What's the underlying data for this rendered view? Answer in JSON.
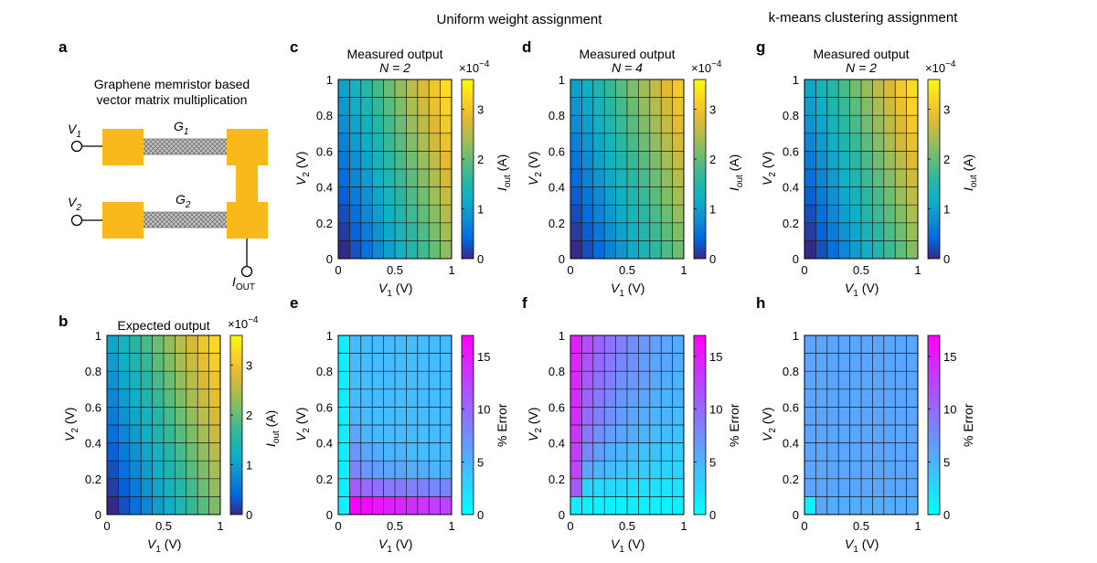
{
  "headers": {
    "uniform": "Uniform weight assignment",
    "kmeans": "k-means clustering assignment"
  },
  "panel_a": {
    "label": "a",
    "title_line1": "Graphene memristor based",
    "title_line2": "vector matrix multiplication",
    "v1": "V",
    "v1_sub": "1",
    "v2": "V",
    "v2_sub": "2",
    "g1": "G",
    "g1_sub": "1",
    "g2": "G",
    "g2_sub": "2",
    "iout": "I",
    "iout_sub": "OUT",
    "pad_color": "#F9B81B",
    "channel_color": "#bfbfbf"
  },
  "colormaps": {
    "parula": [
      "#352a87",
      "#0268e1",
      "#108ed2",
      "#0fb0c6",
      "#2ab7a1",
      "#63bd76",
      "#a6bd53",
      "#e0b934",
      "#fbd326",
      "#f9fb0e"
    ],
    "cool": [
      "#00ffff",
      "#ff00ff"
    ]
  },
  "chart_data": [
    {
      "id": "b",
      "label": "b",
      "type": "heatmap",
      "colormap": "parula",
      "title": "Expected output",
      "title_italic": "",
      "xlabel": "V",
      "xlabel_sub": "1",
      "xlabel_unit": " (V)",
      "ylabel": "V",
      "ylabel_sub": "2",
      "ylabel_unit": " (V)",
      "x": [
        0,
        0.1,
        0.2,
        0.3,
        0.4,
        0.5,
        0.6,
        0.7,
        0.8,
        0.9,
        1
      ],
      "y": [
        0,
        0.1,
        0.2,
        0.3,
        0.4,
        0.5,
        0.6,
        0.7,
        0.8,
        0.9,
        1
      ],
      "xlim": [
        0,
        1
      ],
      "ylim": [
        0,
        1
      ],
      "xticks": [
        "0",
        "0.5",
        "1"
      ],
      "yticks": [
        "0",
        "0.2",
        "0.4",
        "0.6",
        "0.8",
        "1"
      ],
      "grid": true,
      "model": {
        "a": 2.4,
        "b": 1.2,
        "scale": 0.0001
      },
      "colorbar": {
        "range": [
          0,
          3.6
        ],
        "ticks": [
          "0",
          "1",
          "2",
          "3"
        ],
        "exponent": "×10",
        "exponent_power": "−4",
        "label": "I",
        "label_sub": "out",
        "label_unit": " (A)"
      }
    },
    {
      "id": "c",
      "label": "c",
      "type": "heatmap",
      "colormap": "parula",
      "title": "Measured output",
      "title_italic": "N = 2",
      "xlabel": "V",
      "xlabel_sub": "1",
      "xlabel_unit": " (V)",
      "ylabel": "V",
      "ylabel_sub": "2",
      "ylabel_unit": " (V)",
      "x": [
        0,
        0.1,
        0.2,
        0.3,
        0.4,
        0.5,
        0.6,
        0.7,
        0.8,
        0.9,
        1
      ],
      "y": [
        0,
        0.1,
        0.2,
        0.3,
        0.4,
        0.5,
        0.6,
        0.7,
        0.8,
        0.9,
        1
      ],
      "xlim": [
        0,
        1
      ],
      "ylim": [
        0,
        1
      ],
      "xticks": [
        "0",
        "0.5",
        "1"
      ],
      "yticks": [
        "0",
        "0.2",
        "0.4",
        "0.6",
        "0.8",
        "1"
      ],
      "grid": true,
      "model": {
        "a": 2.5,
        "b": 1.15,
        "scale": 0.0001
      },
      "colorbar": {
        "range": [
          0,
          3.6
        ],
        "ticks": [
          "0",
          "1",
          "2",
          "3"
        ],
        "exponent": "×10",
        "exponent_power": "−4",
        "label": "I",
        "label_sub": "out",
        "label_unit": " (A)"
      }
    },
    {
      "id": "d",
      "label": "d",
      "type": "heatmap",
      "colormap": "parula",
      "title": "Measured output",
      "title_italic": "N = 4",
      "xlabel": "V",
      "xlabel_sub": "1",
      "xlabel_unit": " (V)",
      "ylabel": "V",
      "ylabel_sub": "2",
      "ylabel_unit": " (V)",
      "x": [
        0,
        0.1,
        0.2,
        0.3,
        0.4,
        0.5,
        0.6,
        0.7,
        0.8,
        0.9,
        1
      ],
      "y": [
        0,
        0.1,
        0.2,
        0.3,
        0.4,
        0.5,
        0.6,
        0.7,
        0.8,
        0.9,
        1
      ],
      "xlim": [
        0,
        1
      ],
      "ylim": [
        0,
        1
      ],
      "xticks": [
        "0",
        "0.5",
        "1"
      ],
      "yticks": [
        "0",
        "0.2",
        "0.4",
        "0.6",
        "0.8",
        "1"
      ],
      "grid": true,
      "model": {
        "a": 2.3,
        "b": 1.1,
        "scale": 0.0001
      },
      "colorbar": {
        "range": [
          0,
          3.6
        ],
        "ticks": [
          "0",
          "1",
          "2",
          "3"
        ],
        "exponent": "×10",
        "exponent_power": "−4",
        "label": "I",
        "label_sub": "out",
        "label_unit": " (A)"
      }
    },
    {
      "id": "g",
      "label": "g",
      "type": "heatmap",
      "colormap": "parula",
      "title": "Measured output",
      "title_italic": "N = 2",
      "xlabel": "V",
      "xlabel_sub": "1",
      "xlabel_unit": " (V)",
      "ylabel": "V",
      "ylabel_sub": "2",
      "ylabel_unit": " (V)",
      "x": [
        0,
        0.1,
        0.2,
        0.3,
        0.4,
        0.5,
        0.6,
        0.7,
        0.8,
        0.9,
        1
      ],
      "y": [
        0,
        0.1,
        0.2,
        0.3,
        0.4,
        0.5,
        0.6,
        0.7,
        0.8,
        0.9,
        1
      ],
      "xlim": [
        0,
        1
      ],
      "ylim": [
        0,
        1
      ],
      "xticks": [
        "0",
        "0.5",
        "1"
      ],
      "yticks": [
        "0",
        "0.2",
        "0.4",
        "0.6",
        "0.8",
        "1"
      ],
      "grid": true,
      "model": {
        "a": 2.45,
        "b": 1.2,
        "scale": 0.0001
      },
      "colorbar": {
        "range": [
          0,
          3.6
        ],
        "ticks": [
          "0",
          "1",
          "2",
          "3"
        ],
        "exponent": "×10",
        "exponent_power": "−4",
        "label": "I",
        "label_sub": "out",
        "label_unit": " (A)"
      }
    },
    {
      "id": "e",
      "label": "e",
      "type": "heatmap",
      "colormap": "cool",
      "title": "",
      "title_italic": "",
      "xlabel": "V",
      "xlabel_sub": "1",
      "xlabel_unit": " (V)",
      "ylabel": "V",
      "ylabel_sub": "2",
      "ylabel_unit": " (V)",
      "x": [
        0,
        0.1,
        0.2,
        0.3,
        0.4,
        0.5,
        0.6,
        0.7,
        0.8,
        0.9,
        1
      ],
      "y": [
        0,
        0.1,
        0.2,
        0.3,
        0.4,
        0.5,
        0.6,
        0.7,
        0.8,
        0.9,
        1
      ],
      "xlim": [
        0,
        1
      ],
      "ylim": [
        0,
        1
      ],
      "xticks": [
        "0",
        "0.5",
        "1"
      ],
      "yticks": [
        "0",
        "0.2",
        "0.4",
        "0.6",
        "0.8",
        "1"
      ],
      "grid": true,
      "values": [
        [
          1,
          17,
          16.5,
          15.5,
          15,
          14.5,
          14,
          13.5,
          13,
          12.5
        ],
        [
          1,
          11,
          10,
          9.5,
          9,
          9,
          8.5,
          8.5,
          8,
          8
        ],
        [
          1,
          8,
          7,
          6.5,
          6,
          6,
          5.5,
          5.5,
          5,
          5
        ],
        [
          1,
          7,
          6,
          5.5,
          5,
          5,
          4.5,
          4.5,
          4.5,
          4.5
        ],
        [
          1,
          6,
          5,
          4.5,
          4.5,
          4.5,
          4.5,
          4.5,
          4.5,
          4.5
        ],
        [
          1,
          5,
          4.5,
          4.5,
          4.5,
          4.5,
          4.5,
          4.5,
          4.5,
          4.5
        ],
        [
          1,
          4.5,
          4.5,
          4.5,
          4.5,
          4.5,
          4.5,
          4.5,
          4.5,
          4.5
        ],
        [
          1,
          4.5,
          4.5,
          4.5,
          4.5,
          4.5,
          4.5,
          4.5,
          4.5,
          4.5
        ],
        [
          1,
          4.5,
          4.5,
          4.5,
          4.5,
          4.5,
          4.5,
          4.5,
          4.5,
          4.5
        ],
        [
          1,
          4.5,
          4.5,
          4.5,
          4.5,
          4.5,
          4.5,
          4.5,
          4.5,
          4.5
        ]
      ],
      "colorbar": {
        "range": [
          0,
          17
        ],
        "ticks": [
          "0",
          "5",
          "10",
          "15"
        ],
        "exponent": "",
        "exponent_power": "",
        "label": "% Error",
        "label_sub": "",
        "label_unit": ""
      }
    },
    {
      "id": "f",
      "label": "f",
      "type": "heatmap",
      "colormap": "cool",
      "title": "",
      "title_italic": "",
      "xlabel": "V",
      "xlabel_sub": "1",
      "xlabel_unit": " (V)",
      "ylabel": "V",
      "ylabel_sub": "2",
      "ylabel_unit": " (V)",
      "x": [
        0,
        0.1,
        0.2,
        0.3,
        0.4,
        0.5,
        0.6,
        0.7,
        0.8,
        0.9,
        1
      ],
      "y": [
        0,
        0.1,
        0.2,
        0.3,
        0.4,
        0.5,
        0.6,
        0.7,
        0.8,
        0.9,
        1
      ],
      "xlim": [
        0,
        1
      ],
      "ylim": [
        0,
        1
      ],
      "xticks": [
        "0",
        "0.5",
        "1"
      ],
      "yticks": [
        "0",
        "0.2",
        "0.4",
        "0.6",
        "0.8",
        "1"
      ],
      "grid": true,
      "values": [
        [
          1.5,
          1,
          1,
          1,
          1,
          1,
          1,
          1,
          1,
          1
        ],
        [
          11,
          3,
          2.5,
          2.5,
          2.5,
          2,
          2,
          2,
          2,
          2
        ],
        [
          12.5,
          6,
          5,
          4.5,
          4,
          3.5,
          3.5,
          3,
          3,
          3
        ],
        [
          13,
          8,
          6.5,
          5.5,
          5,
          4.5,
          4,
          4,
          3.5,
          3.5
        ],
        [
          13.5,
          9,
          7.5,
          6.5,
          6,
          5.5,
          5,
          4.5,
          4.5,
          4
        ],
        [
          14,
          10,
          8.5,
          7.5,
          6.5,
          6,
          5.5,
          5,
          5,
          4.5
        ],
        [
          14,
          10.5,
          9,
          8,
          7,
          6.5,
          6,
          5.5,
          5,
          5
        ],
        [
          14.5,
          11,
          9.5,
          8.5,
          7.5,
          7,
          6.5,
          6,
          5.5,
          5
        ],
        [
          14.5,
          11.5,
          10,
          9,
          8,
          7.5,
          6.5,
          6,
          6,
          5.5
        ],
        [
          15,
          12,
          10.5,
          9.5,
          8.5,
          7.5,
          7,
          6.5,
          6,
          5.5
        ]
      ],
      "colorbar": {
        "range": [
          0,
          17
        ],
        "ticks": [
          "0",
          "5",
          "10",
          "15"
        ],
        "exponent": "",
        "exponent_power": "",
        "label": "% Error",
        "label_sub": "",
        "label_unit": ""
      }
    },
    {
      "id": "h",
      "label": "h",
      "type": "heatmap",
      "colormap": "cool",
      "title": "",
      "title_italic": "",
      "xlabel": "V",
      "xlabel_sub": "1",
      "xlabel_unit": " (V)",
      "ylabel": "V",
      "ylabel_sub": "2",
      "ylabel_unit": " (V)",
      "x": [
        0,
        0.1,
        0.2,
        0.3,
        0.4,
        0.5,
        0.6,
        0.7,
        0.8,
        0.9,
        1
      ],
      "y": [
        0,
        0.1,
        0.2,
        0.3,
        0.4,
        0.5,
        0.6,
        0.7,
        0.8,
        0.9,
        1
      ],
      "xlim": [
        0,
        1
      ],
      "ylim": [
        0,
        1
      ],
      "xticks": [
        "0",
        "0.5",
        "1"
      ],
      "yticks": [
        "0",
        "0.2",
        "0.4",
        "0.6",
        "0.8",
        "1"
      ],
      "grid": true,
      "values": [
        [
          1,
          6,
          5.5,
          5.5,
          5.5,
          5.5,
          5.5,
          5.5,
          5.5,
          5.5
        ],
        [
          6,
          6,
          6,
          6,
          6,
          6,
          6,
          6,
          6,
          6
        ],
        [
          6,
          6,
          6,
          6,
          6,
          6,
          6,
          6,
          6,
          6
        ],
        [
          6,
          6,
          6,
          6,
          6,
          6,
          6,
          6,
          6,
          6
        ],
        [
          6,
          6,
          6,
          6,
          6,
          6,
          6,
          6,
          6,
          6
        ],
        [
          6,
          6,
          6,
          6,
          6,
          6,
          6,
          6,
          6,
          6
        ],
        [
          6,
          6,
          6,
          6,
          6,
          6,
          6,
          6,
          6,
          6
        ],
        [
          6,
          6,
          6,
          6,
          6,
          6,
          6,
          6,
          6,
          6
        ],
        [
          6,
          6,
          6,
          6,
          6,
          6,
          6,
          6,
          6,
          6
        ],
        [
          6,
          6,
          6,
          6,
          6,
          6,
          6,
          6,
          6,
          6
        ]
      ],
      "colorbar": {
        "range": [
          0,
          17
        ],
        "ticks": [
          "0",
          "5",
          "10",
          "15"
        ],
        "exponent": "",
        "exponent_power": "",
        "label": "% Error",
        "label_sub": "",
        "label_unit": ""
      }
    }
  ]
}
